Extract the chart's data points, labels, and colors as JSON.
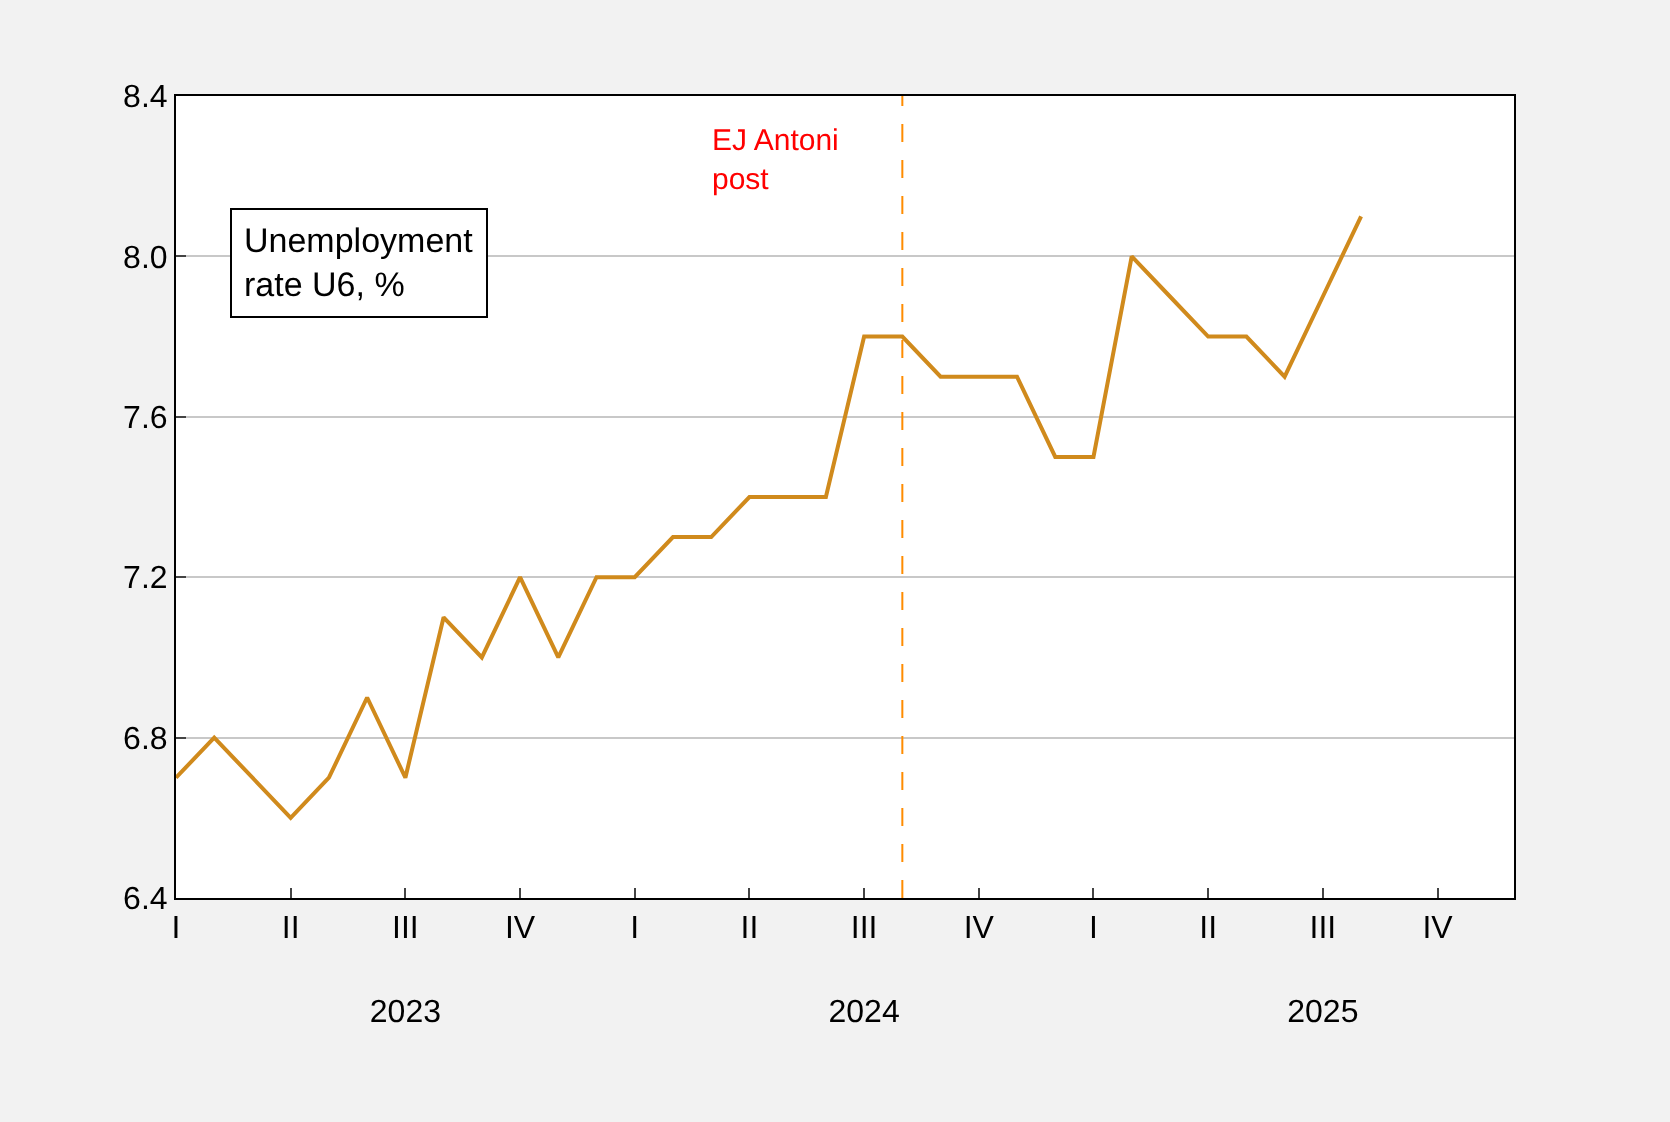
{
  "chart_data": {
    "type": "line",
    "categories": [
      "I",
      null,
      null,
      "II",
      null,
      null,
      "III\n\n2023",
      null,
      null,
      "IV",
      null,
      null,
      "I",
      null,
      null,
      "II",
      null,
      null,
      "III\n\n2024",
      null,
      null,
      "IV",
      null,
      null,
      "I",
      null,
      null,
      "II",
      null,
      null,
      "III\n\n2025",
      null,
      null,
      "IV",
      null,
      null
    ],
    "series": [
      {
        "color": "#d08a1c",
        "values": [
          6.7,
          6.8,
          6.7,
          6.6,
          6.7,
          6.9,
          6.7,
          7.1,
          7.0,
          7.2,
          7.0,
          7.2,
          7.2,
          7.3,
          7.3,
          7.4,
          7.4,
          7.4,
          7.8,
          7.8,
          7.7,
          7.7,
          7.7,
          7.5,
          7.5,
          8.0,
          7.9,
          7.8,
          7.8,
          7.7,
          7.9,
          8.1,
          null,
          null,
          null,
          null
        ]
      }
    ],
    "ylim": [
      6.4,
      8.4
    ],
    "yticks": [
      {
        "value": 6.4,
        "label": "6.4"
      },
      {
        "value": 6.8,
        "label": "6.8"
      },
      {
        "value": 7.2,
        "label": "7.2"
      },
      {
        "value": 7.6,
        "label": "7.6"
      },
      {
        "value": 8.0,
        "label": "8.0"
      },
      {
        "value": 8.4,
        "label": "8.4"
      }
    ],
    "annotations": [
      "Unemployment\nrate U6, %",
      "EJ Antoni\npost"
    ],
    "grid": "y",
    "marker": "none",
    "line_style": "solid"
  }
}
